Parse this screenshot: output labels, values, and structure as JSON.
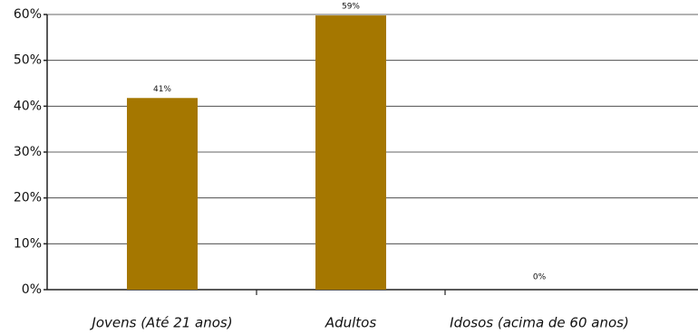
{
  "chart_data": {
    "type": "bar",
    "categories": [
      "Jovens (Até 21 anos)",
      "Adultos",
      "Idosos (acima de 60 anos)"
    ],
    "values": [
      41,
      59,
      0
    ],
    "value_labels": [
      "41%",
      "59%",
      "0%"
    ],
    "color": "#a57700",
    "ylim": [
      0,
      60
    ],
    "yticks": [
      {
        "value": 0,
        "label": "0%"
      },
      {
        "value": 10,
        "label": "10%"
      },
      {
        "value": 20,
        "label": "20%"
      },
      {
        "value": 30,
        "label": "30%"
      },
      {
        "value": 40,
        "label": "40%"
      },
      {
        "value": 50,
        "label": "50%"
      },
      {
        "value": 60,
        "label": "60%"
      }
    ],
    "grid": true
  }
}
